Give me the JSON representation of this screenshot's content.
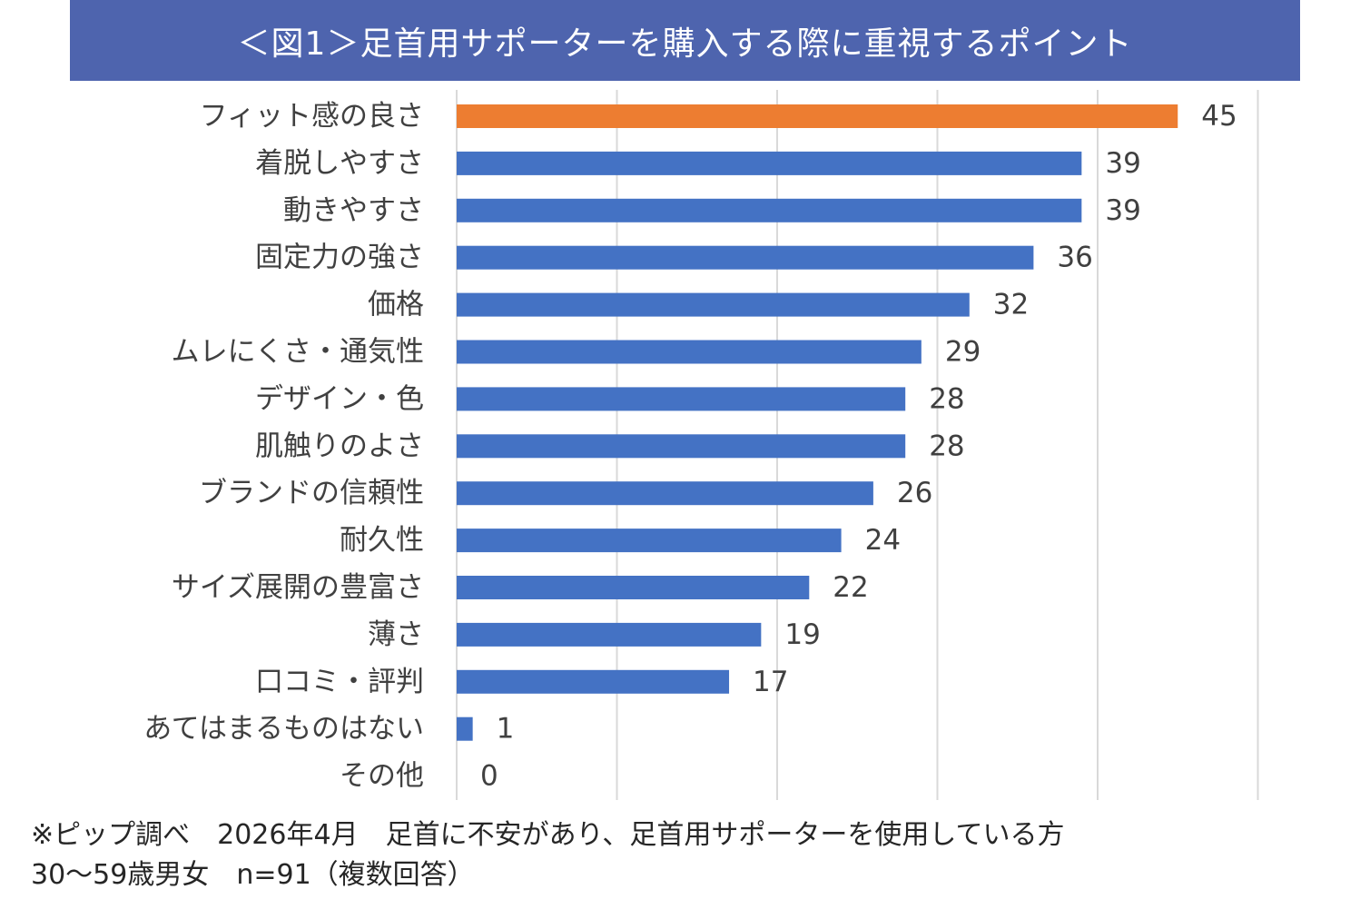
{
  "chart_data": {
    "type": "bar",
    "orientation": "horizontal",
    "title": "＜図1＞足首用サポーターを購入する際に重視するポイント",
    "categories": [
      "フィット感の良さ",
      "着脱しやすさ",
      "動きやすさ",
      "固定力の強さ",
      "価格",
      "ムレにくさ・通気性",
      "デザイン・色",
      "肌触りのよさ",
      "ブランドの信頼性",
      "耐久性",
      "サイズ展開の豊富さ",
      "薄さ",
      "口コミ・評判",
      "あてはまるものはない",
      "その他"
    ],
    "values": [
      45,
      39,
      39,
      36,
      32,
      29,
      28,
      28,
      26,
      24,
      22,
      19,
      17,
      1,
      0
    ],
    "xlim": [
      0,
      50
    ],
    "grid": true,
    "highlight_color": "#ed7d31",
    "bar_color": "#4472c4",
    "grid_color": "#d9d9d9"
  },
  "footnote": {
    "line1": "※ピップ調べ　2026年4月　足首に不安があり、足首用サポーターを使用している方",
    "line2": "30～59歳男女　n=91（複数回答）"
  }
}
